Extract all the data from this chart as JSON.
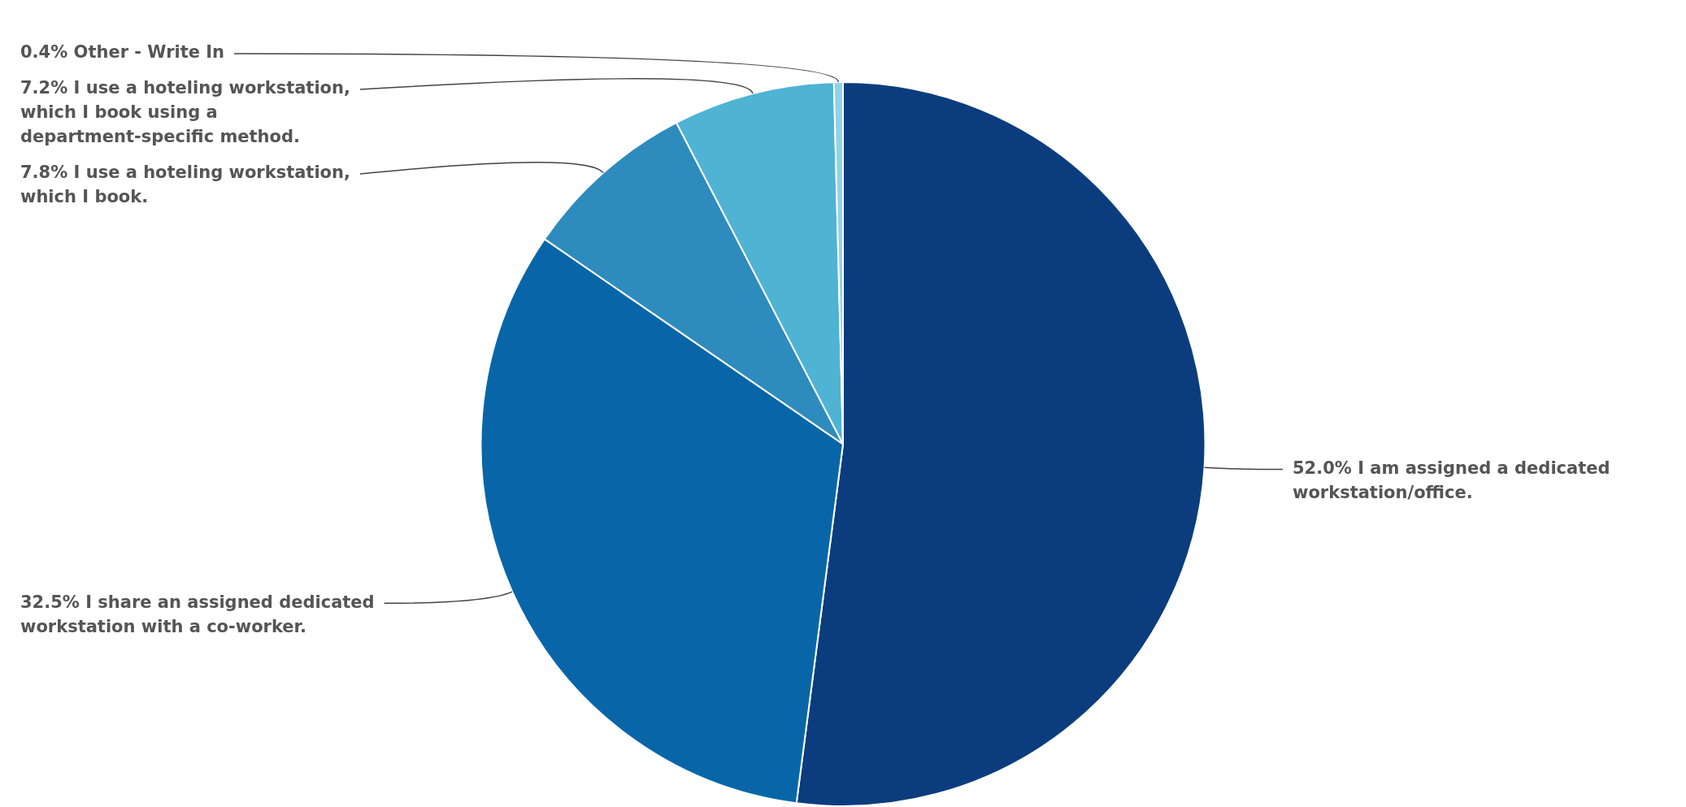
{
  "chart_data": {
    "type": "pie",
    "categories": [
      "I am assigned a dedicated workstation/office.",
      "I share an assigned dedicated workstation with a co-worker.",
      "I use a hoteling workstation, which I book.",
      "I use a hoteling workstation, which I book using a department-specific method.",
      "Other - Write In"
    ],
    "values": [
      52.0,
      32.5,
      7.8,
      7.2,
      0.4
    ],
    "value_labels": [
      "52.0%",
      "32.5%",
      "7.8%",
      "7.2%",
      "0.4%"
    ],
    "colors": [
      "#0b3d7e",
      "#0866a8",
      "#2e8bbd",
      "#4fb3d4",
      "#8fd3e6"
    ]
  }
}
